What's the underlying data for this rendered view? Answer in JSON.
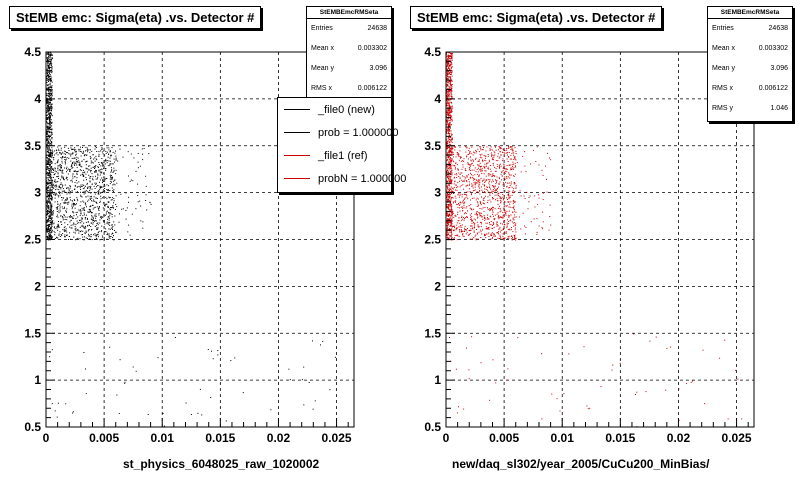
{
  "panels": [
    {
      "title": "StEMB emc: Sigma(eta) .vs. Detector #",
      "xtitle": "st_physics_6048025_raw_1020002",
      "color": "#000000",
      "stats": {
        "title": "StEMBEmcRMSeta",
        "rows": [
          {
            "label": "Entries",
            "value": "24638"
          },
          {
            "label": "Mean x",
            "value": "0.003302"
          },
          {
            "label": "Mean y",
            "value": "3.096"
          },
          {
            "label": "RMS x",
            "value": "0.006122"
          }
        ]
      },
      "legend": {
        "entries": [
          {
            "label": "_file0 (new)",
            "color": "#000000"
          },
          {
            "label": "prob = 1.000000",
            "color": "#000000"
          },
          {
            "label": "_file1 (ref)",
            "color": "#cc0000"
          },
          {
            "label": "probN = 1.000000",
            "color": "#cc0000"
          }
        ]
      }
    },
    {
      "title": "StEMB emc: Sigma(eta) .vs. Detector #",
      "xtitle": "new/daq_sl302/year_2005/CuCu200_MinBias/",
      "color": "#cc0000",
      "stats": {
        "title": "StEMBEmcRMSeta",
        "rows": [
          {
            "label": "Entries",
            "value": "24638"
          },
          {
            "label": "Mean x",
            "value": "0.003302"
          },
          {
            "label": "Mean y",
            "value": "3.096"
          },
          {
            "label": "RMS x",
            "value": "0.006122"
          },
          {
            "label": "RMS y",
            "value": "1.046"
          }
        ]
      }
    }
  ],
  "chart_data": [
    {
      "type": "scatter",
      "title": "StEMB emc: Sigma(eta) .vs. Detector #",
      "xlabel": "st_physics_6048025_raw_1020002",
      "ylabel": "",
      "xlim": [
        0,
        0.0265
      ],
      "ylim": [
        0.5,
        4.5
      ],
      "xticks": [
        "0",
        "0.005",
        "0.01",
        "0.015",
        "0.02",
        "0.025"
      ],
      "yticks": [
        "0.5",
        "1",
        "1.5",
        "2",
        "2.5",
        "3",
        "3.5",
        "4",
        "4.5"
      ],
      "grid": true,
      "marker_color": "#000000",
      "regions": [
        {
          "description": "dense column",
          "x": [
            0.0,
            0.0005
          ],
          "y": [
            2.5,
            4.5
          ],
          "density": "very high"
        },
        {
          "description": "dense block",
          "x": [
            0.0005,
            0.006
          ],
          "y": [
            2.5,
            3.5
          ],
          "density": "high"
        },
        {
          "description": "sparse tail",
          "x": [
            0.006,
            0.009
          ],
          "y": [
            2.5,
            3.5
          ],
          "density": "low"
        },
        {
          "description": "low band",
          "x": [
            0.0,
            0.026
          ],
          "y": [
            0.5,
            1.5
          ],
          "density": "low"
        }
      ]
    },
    {
      "type": "scatter",
      "title": "StEMB emc: Sigma(eta) .vs. Detector #",
      "xlabel": "new/daq_sl302/year_2005/CuCu200_MinBias/",
      "ylabel": "",
      "xlim": [
        0,
        0.0265
      ],
      "ylim": [
        0.5,
        4.5
      ],
      "xticks": [
        "0",
        "0.005",
        "0.01",
        "0.015",
        "0.02",
        "0.025"
      ],
      "yticks": [
        "0.5",
        "1",
        "1.5",
        "2",
        "2.5",
        "3",
        "3.5",
        "4",
        "4.5"
      ],
      "grid": true,
      "marker_color": "#cc0000",
      "regions": [
        {
          "description": "dense column",
          "x": [
            0.0,
            0.0005
          ],
          "y": [
            2.5,
            4.5
          ],
          "density": "very high"
        },
        {
          "description": "dense block",
          "x": [
            0.0005,
            0.006
          ],
          "y": [
            2.5,
            3.5
          ],
          "density": "high"
        },
        {
          "description": "sparse tail",
          "x": [
            0.006,
            0.009
          ],
          "y": [
            2.5,
            3.5
          ],
          "density": "low"
        },
        {
          "description": "low band",
          "x": [
            0.0,
            0.026
          ],
          "y": [
            0.5,
            1.5
          ],
          "density": "low"
        }
      ]
    }
  ]
}
